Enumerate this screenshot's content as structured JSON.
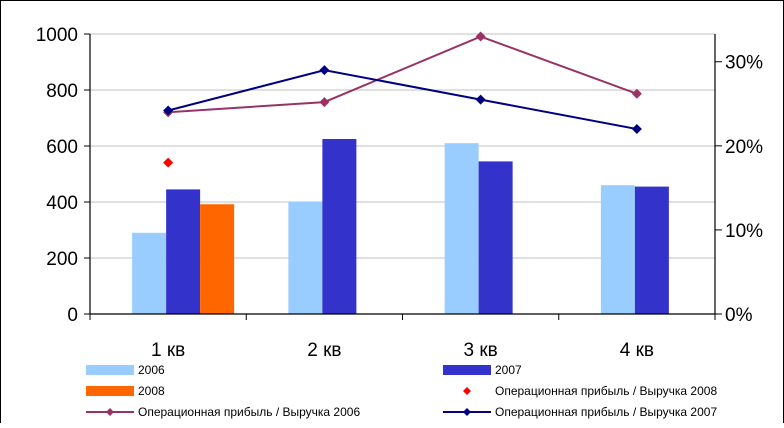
{
  "chart_data": {
    "type": "bar",
    "categories": [
      "1 кв",
      "2 кв",
      "3 кв",
      "4 кв"
    ],
    "bar_series": [
      {
        "name": "2006",
        "color": "#99ccff",
        "values": [
          290,
          400,
          610,
          460
        ]
      },
      {
        "name": "2007",
        "color": "#3333cc",
        "values": [
          445,
          625,
          545,
          455
        ]
      },
      {
        "name": "2008",
        "color": "#ff6600",
        "values": [
          392,
          null,
          null,
          null
        ]
      }
    ],
    "line_series": [
      {
        "name": "Операционная прибыль / Выручка 2008",
        "color": "#ff0000",
        "marker": "diamond",
        "line": false,
        "values": [
          0.18,
          null,
          null,
          null
        ]
      },
      {
        "name": "Операционная прибыль / Выручка 2006",
        "color": "#993366",
        "marker": "diamond",
        "line": true,
        "values": [
          0.24,
          0.252,
          0.33,
          0.262
        ]
      },
      {
        "name": "Операционная прибыль / Выручка 2007",
        "color": "#000080",
        "marker": "diamond",
        "line": true,
        "values": [
          0.242,
          0.29,
          0.255,
          0.22
        ]
      }
    ],
    "y_left": {
      "min": 0,
      "max": 1000,
      "ticks": [
        0,
        200,
        400,
        600,
        800,
        1000
      ]
    },
    "y_right": {
      "min": 0,
      "max": 0.333,
      "ticks": [
        "0%",
        "10%",
        "20%",
        "30%"
      ],
      "tick_values": [
        0,
        0.1,
        0.2,
        0.3
      ]
    },
    "grid": true,
    "legend_position": "bottom",
    "legend_order": [
      [
        "2006",
        "2007"
      ],
      [
        "2008",
        "Операционная прибыль / Выручка 2008"
      ],
      [
        "Операционная прибыль / Выручка 2006",
        "Операционная прибыль / Выручка 2007"
      ]
    ]
  }
}
